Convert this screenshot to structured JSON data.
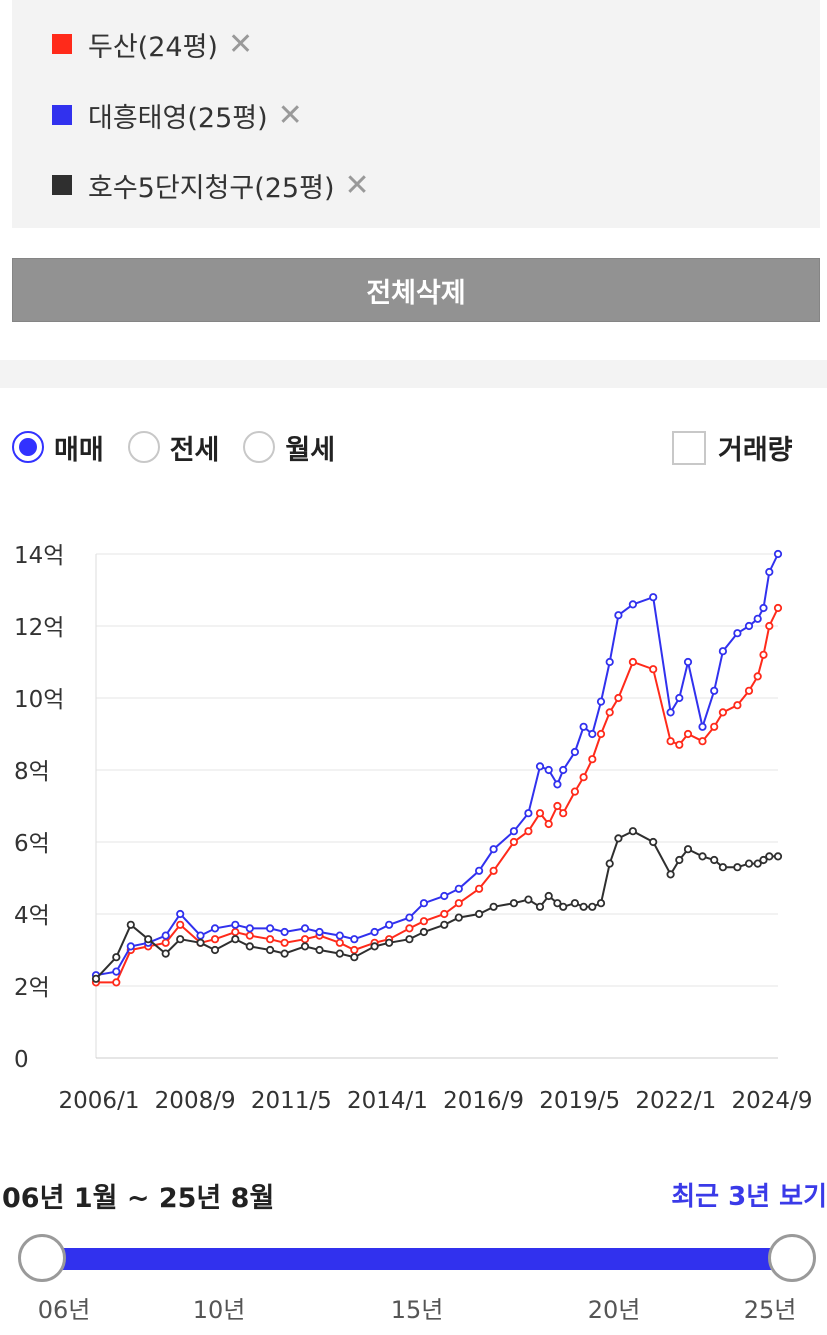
{
  "legend": {
    "items": [
      {
        "label": "두산(24평)",
        "color": "#ff2a1a",
        "close": "✕"
      },
      {
        "label": "대흥태영(25평)",
        "color": "#3131ee",
        "close": "✕"
      },
      {
        "label": "호수5단지청구(25평)",
        "color": "#2f2f2f",
        "close": "✕"
      }
    ]
  },
  "clear_all_label": "전체삭제",
  "trade_types": {
    "options": [
      "매매",
      "전세",
      "월세"
    ],
    "selected": "매매"
  },
  "volume_label": "거래량",
  "range": {
    "title": "06년 1월 ~ 25년 8월",
    "recent_link": "최근 3년 보기",
    "ticks": [
      "06년",
      "10년",
      "15년",
      "20년",
      "25년"
    ]
  },
  "chart_data": {
    "type": "line",
    "x_range": [
      "2006-01",
      "2025-08"
    ],
    "x_ticks": [
      "2006/1",
      "2008/9",
      "2011/5",
      "2014/1",
      "2016/9",
      "2019/5",
      "2022/1",
      "2024/9"
    ],
    "y_ticks": [
      "0",
      "2억",
      "4억",
      "6억",
      "8억",
      "10억",
      "12억",
      "14억"
    ],
    "ylim": [
      0,
      14
    ],
    "y_unit": "억",
    "grid": true,
    "series": [
      {
        "name": "두산(24평)",
        "color": "#ff2a1a",
        "x": [
          "2006-01",
          "2006-08",
          "2007-01",
          "2007-07",
          "2008-01",
          "2008-06",
          "2009-01",
          "2009-06",
          "2010-01",
          "2010-06",
          "2011-01",
          "2011-06",
          "2012-01",
          "2012-06",
          "2013-01",
          "2013-06",
          "2014-01",
          "2014-06",
          "2015-01",
          "2015-06",
          "2016-01",
          "2016-06",
          "2017-01",
          "2017-06",
          "2018-01",
          "2018-06",
          "2018-10",
          "2019-01",
          "2019-04",
          "2019-06",
          "2019-10",
          "2020-01",
          "2020-04",
          "2020-07",
          "2020-10",
          "2021-01",
          "2021-06",
          "2022-01",
          "2022-07",
          "2022-10",
          "2023-01",
          "2023-06",
          "2023-10",
          "2024-01",
          "2024-06",
          "2024-10",
          "2025-01",
          "2025-03",
          "2025-05",
          "2025-08"
        ],
        "values": [
          2.1,
          2.1,
          3.0,
          3.1,
          3.2,
          3.7,
          3.2,
          3.3,
          3.5,
          3.4,
          3.3,
          3.2,
          3.3,
          3.4,
          3.2,
          3.0,
          3.2,
          3.3,
          3.6,
          3.8,
          4.0,
          4.3,
          4.7,
          5.2,
          6.0,
          6.3,
          6.8,
          6.5,
          7.0,
          6.8,
          7.4,
          7.8,
          8.3,
          9.0,
          9.6,
          10.0,
          11.0,
          10.8,
          8.8,
          8.7,
          9.0,
          8.8,
          9.2,
          9.6,
          9.8,
          10.2,
          10.6,
          11.2,
          12.0,
          12.5
        ]
      },
      {
        "name": "대흥태영(25평)",
        "color": "#3131ee",
        "x": [
          "2006-01",
          "2006-08",
          "2007-01",
          "2007-07",
          "2008-01",
          "2008-06",
          "2009-01",
          "2009-06",
          "2010-01",
          "2010-06",
          "2011-01",
          "2011-06",
          "2012-01",
          "2012-06",
          "2013-01",
          "2013-06",
          "2014-01",
          "2014-06",
          "2015-01",
          "2015-06",
          "2016-01",
          "2016-06",
          "2017-01",
          "2017-06",
          "2018-01",
          "2018-06",
          "2018-10",
          "2019-01",
          "2019-04",
          "2019-06",
          "2019-10",
          "2020-01",
          "2020-04",
          "2020-07",
          "2020-10",
          "2021-01",
          "2021-06",
          "2022-01",
          "2022-07",
          "2022-10",
          "2023-01",
          "2023-06",
          "2023-10",
          "2024-01",
          "2024-06",
          "2024-10",
          "2025-01",
          "2025-03",
          "2025-05",
          "2025-08"
        ],
        "values": [
          2.3,
          2.4,
          3.1,
          3.2,
          3.4,
          4.0,
          3.4,
          3.6,
          3.7,
          3.6,
          3.6,
          3.5,
          3.6,
          3.5,
          3.4,
          3.3,
          3.5,
          3.7,
          3.9,
          4.3,
          4.5,
          4.7,
          5.2,
          5.8,
          6.3,
          6.8,
          8.1,
          8.0,
          7.6,
          8.0,
          8.5,
          9.2,
          9.0,
          9.9,
          11.0,
          12.3,
          12.6,
          12.8,
          9.6,
          10.0,
          11.0,
          9.2,
          10.2,
          11.3,
          11.8,
          12.0,
          12.2,
          12.5,
          13.5,
          14.0
        ]
      },
      {
        "name": "호수5단지청구(25평)",
        "color": "#2f2f2f",
        "x": [
          "2006-01",
          "2006-08",
          "2007-01",
          "2007-07",
          "2008-01",
          "2008-06",
          "2009-01",
          "2009-06",
          "2010-01",
          "2010-06",
          "2011-01",
          "2011-06",
          "2012-01",
          "2012-06",
          "2013-01",
          "2013-06",
          "2014-01",
          "2014-06",
          "2015-01",
          "2015-06",
          "2016-01",
          "2016-06",
          "2017-01",
          "2017-06",
          "2018-01",
          "2018-06",
          "2018-10",
          "2019-01",
          "2019-04",
          "2019-06",
          "2019-10",
          "2020-01",
          "2020-04",
          "2020-07",
          "2020-10",
          "2021-01",
          "2021-06",
          "2022-01",
          "2022-07",
          "2022-10",
          "2023-01",
          "2023-06",
          "2023-10",
          "2024-01",
          "2024-06",
          "2024-10",
          "2025-01",
          "2025-03",
          "2025-05",
          "2025-08"
        ],
        "values": [
          2.2,
          2.8,
          3.7,
          3.3,
          2.9,
          3.3,
          3.2,
          3.0,
          3.3,
          3.1,
          3.0,
          2.9,
          3.1,
          3.0,
          2.9,
          2.8,
          3.1,
          3.2,
          3.3,
          3.5,
          3.7,
          3.9,
          4.0,
          4.2,
          4.3,
          4.4,
          4.2,
          4.5,
          4.3,
          4.2,
          4.3,
          4.2,
          4.2,
          4.3,
          5.4,
          6.1,
          6.3,
          6.0,
          5.1,
          5.5,
          5.8,
          5.6,
          5.5,
          5.3,
          5.3,
          5.4,
          5.4,
          5.5,
          5.6,
          5.6
        ]
      }
    ]
  }
}
